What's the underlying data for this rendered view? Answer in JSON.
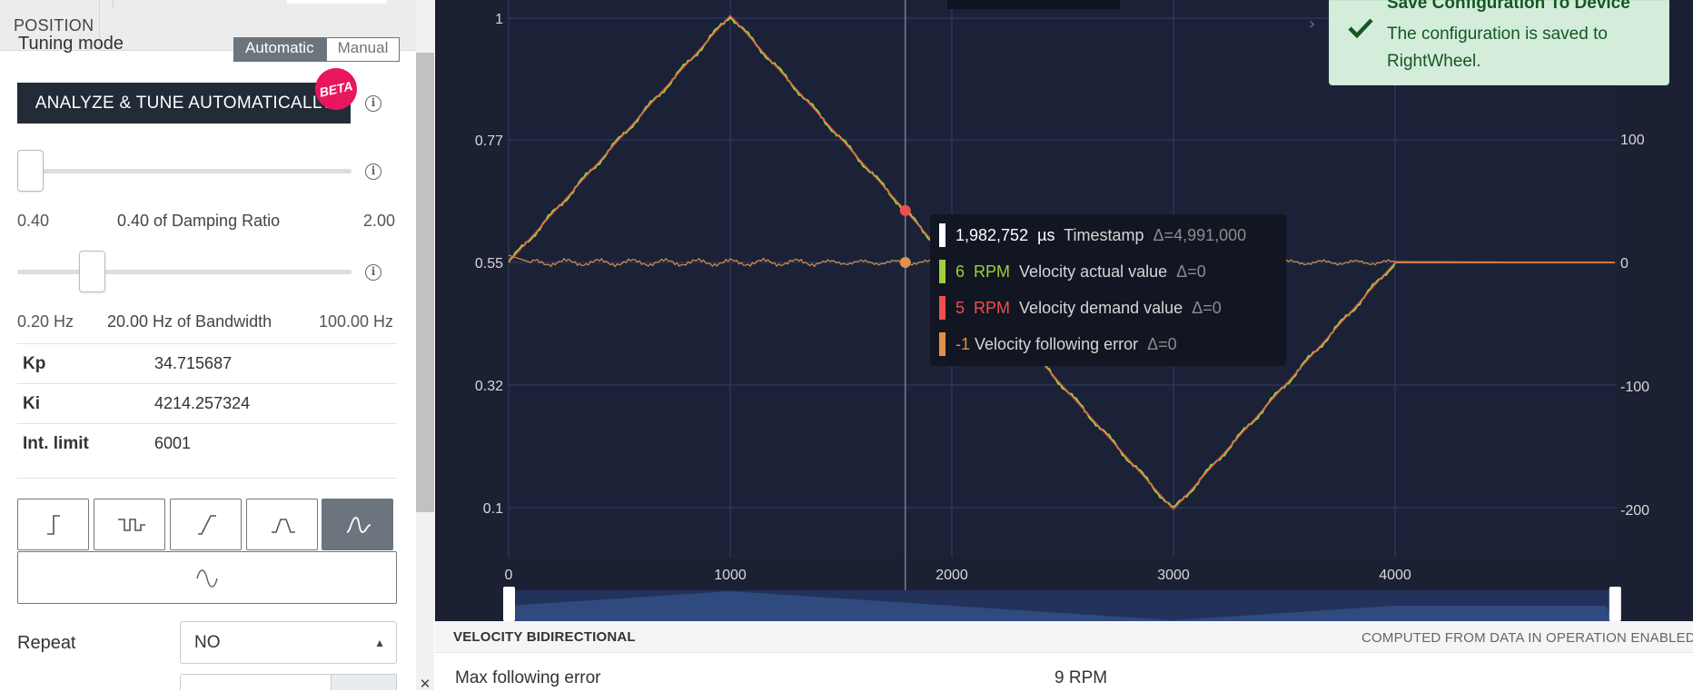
{
  "sidebar": {
    "tab_position": "POSITION",
    "tuning_mode_label": "Tuning mode",
    "tuning_modes": [
      "Automatic",
      "Manual"
    ],
    "analyze_button": "ANALYZE & TUNE AUTOMATICALLY",
    "beta_badge": "BETA",
    "damping": {
      "min": "0.40",
      "label": "0.40 of Damping Ratio",
      "max": "2.00",
      "value_fraction": 0.0
    },
    "bandwidth": {
      "min": "0.20 Hz",
      "label": "20.00 Hz of Bandwidth",
      "max": "100.00 Hz",
      "value_fraction": 0.2
    },
    "params": [
      {
        "name": "Kp",
        "value": "34.715687"
      },
      {
        "name": "Ki",
        "value": "4214.257324"
      },
      {
        "name": "Int. limit",
        "value": "6001"
      }
    ],
    "waveforms": [
      "step-icon",
      "square-pulse-icon",
      "ramp-icon",
      "trapezoid-icon",
      "s-curve-icon"
    ],
    "active_waveform": 4,
    "sine_waveform": "sine-icon",
    "repeat_label": "Repeat",
    "repeat_value": "NO"
  },
  "chart": {
    "tooltip": {
      "timestamp": {
        "value": "1,982,752",
        "unit": "µs",
        "name": "Timestamp",
        "delta": "Δ=4,991,000",
        "color": "#ffffff"
      },
      "rows": [
        {
          "value": "6",
          "unit": "RPM",
          "name": "Velocity actual value",
          "delta": "Δ=0",
          "color": "#9ed03c"
        },
        {
          "value": "5",
          "unit": "RPM",
          "name": "Velocity demand value",
          "delta": "Δ=0",
          "color": "#f04e4e"
        },
        {
          "value": "-1",
          "unit": "",
          "name": "Velocity following error",
          "delta": "Δ=0",
          "color": "#e0924a"
        }
      ]
    }
  },
  "chart_data": {
    "type": "line",
    "x": [
      0,
      1000,
      2000,
      3000,
      4000,
      4991
    ],
    "xlim": [
      0,
      5000
    ],
    "xticks": [
      "0",
      "1000",
      "2000",
      "3000",
      "4000"
    ],
    "yleft_ticks": [
      "1",
      "0.77",
      "0.55",
      "0.32",
      "0.1"
    ],
    "yright_ticks": [
      "100",
      "0",
      "-100",
      "-200"
    ],
    "series": [
      {
        "name": "Velocity actual value",
        "color": "#9ed03c",
        "values": [
          0,
          200,
          0,
          -200,
          0,
          0
        ]
      },
      {
        "name": "Velocity demand value",
        "color": "#f04e4e",
        "values": [
          0,
          200,
          0,
          -200,
          0,
          0
        ]
      },
      {
        "name": "Velocity following error",
        "color": "#e0924a",
        "values": [
          0,
          0,
          0,
          0,
          0,
          0
        ]
      }
    ],
    "cursor_x": 1790,
    "grid": true
  },
  "toast": {
    "title": "Save Configuration To Device",
    "message": "The configuration is saved to RightWheel."
  },
  "stats": {
    "title": "VELOCITY BIDIRECTIONAL",
    "note": "COMPUTED FROM DATA IN OPERATION ENABLED S",
    "rows": [
      {
        "label": "Max following error",
        "value": "9 RPM"
      }
    ]
  },
  "colors": {
    "chart_bg": "#1b2033",
    "demand": "#f04e4e",
    "actual": "#9ed03c",
    "error": "#e0924a",
    "toast_bg": "#d4eddb",
    "accent_dark": "#222b36",
    "beta": "#e8175d"
  }
}
